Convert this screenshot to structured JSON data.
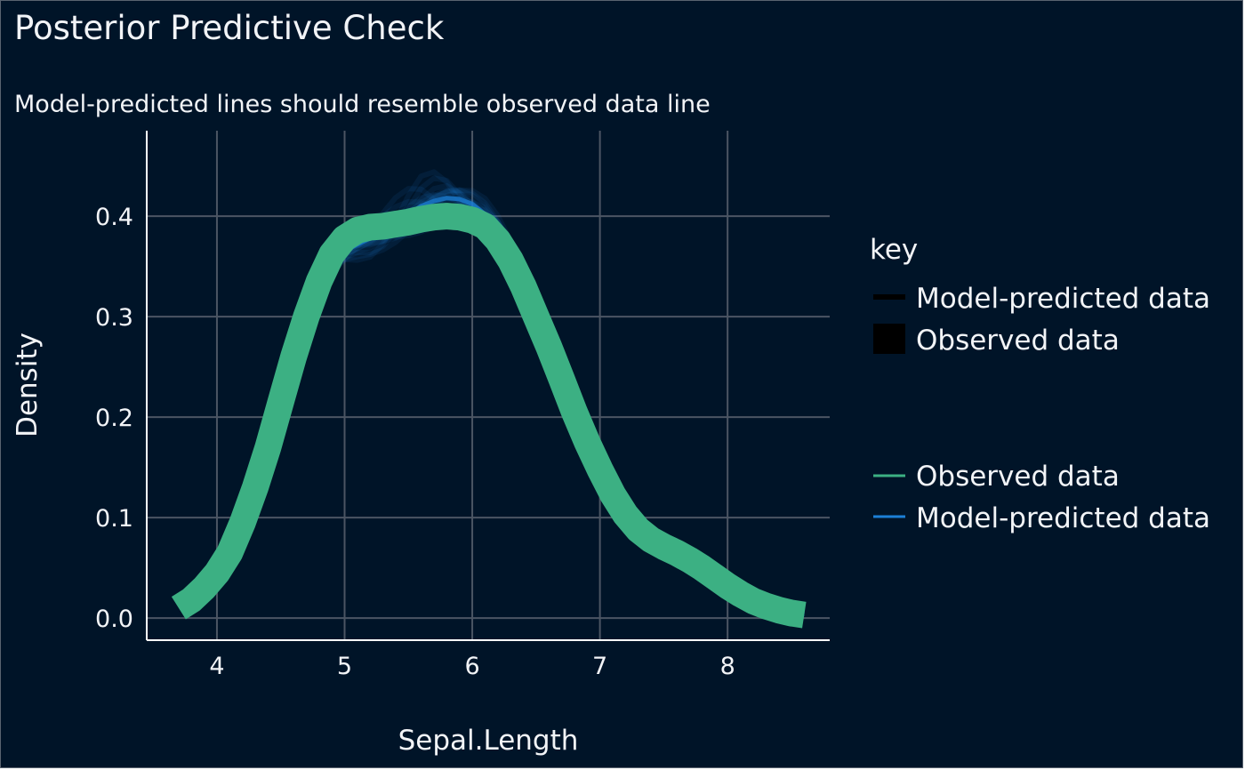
{
  "chart_data": {
    "type": "line",
    "title": "Posterior Predictive Check",
    "subtitle": "Model-predicted lines should resemble observed data line",
    "xlabel": "Sepal.Length",
    "ylabel": "Density",
    "xlim": [
      3.45,
      8.8
    ],
    "ylim": [
      -0.022,
      0.485
    ],
    "x_ticks": [
      "4",
      "5",
      "6",
      "7",
      "8"
    ],
    "y_ticks": [
      "0.0",
      "0.1",
      "0.2",
      "0.3",
      "0.4"
    ],
    "grid": true,
    "legend_position": "right",
    "legend": {
      "title": "key",
      "group1": [
        "Model-predicted data",
        "Observed data"
      ],
      "group2": [
        "Observed data",
        "Model-predicted data"
      ]
    },
    "colors": {
      "background": "#001428",
      "grid": "#4b5563",
      "axis": "#ffffff",
      "observed": "#3cb083",
      "predicted": "#1c7fd6"
    },
    "series": [
      {
        "name": "Observed data",
        "x": [
          3.7,
          3.8,
          3.9,
          4.0,
          4.1,
          4.2,
          4.3,
          4.4,
          4.5,
          4.6,
          4.7,
          4.8,
          4.9,
          5.0,
          5.1,
          5.2,
          5.3,
          5.4,
          5.5,
          5.6,
          5.7,
          5.8,
          5.9,
          6.0,
          6.1,
          6.2,
          6.3,
          6.4,
          6.5,
          6.6,
          6.7,
          6.8,
          6.9,
          7.0,
          7.1,
          7.2,
          7.3,
          7.4,
          7.5,
          7.6,
          7.7,
          7.8,
          7.9,
          8.0,
          8.1,
          8.2,
          8.3,
          8.4,
          8.5,
          8.6
        ],
        "y": [
          0.01,
          0.018,
          0.03,
          0.045,
          0.065,
          0.095,
          0.13,
          0.17,
          0.215,
          0.26,
          0.3,
          0.335,
          0.362,
          0.378,
          0.386,
          0.389,
          0.39,
          0.392,
          0.394,
          0.397,
          0.399,
          0.4,
          0.399,
          0.396,
          0.39,
          0.376,
          0.356,
          0.33,
          0.3,
          0.27,
          0.238,
          0.205,
          0.175,
          0.148,
          0.123,
          0.103,
          0.088,
          0.078,
          0.071,
          0.065,
          0.058,
          0.05,
          0.041,
          0.032,
          0.024,
          0.017,
          0.012,
          0.008,
          0.005,
          0.003
        ]
      },
      {
        "name": "Model-predicted data",
        "x": [
          3.7,
          3.8,
          3.9,
          4.0,
          4.1,
          4.2,
          4.3,
          4.4,
          4.5,
          4.6,
          4.7,
          4.8,
          4.9,
          5.0,
          5.1,
          5.2,
          5.3,
          5.4,
          5.5,
          5.6,
          5.7,
          5.8,
          5.9,
          6.0,
          6.1,
          6.2,
          6.3,
          6.4,
          6.5,
          6.6,
          6.7,
          6.8,
          6.9,
          7.0,
          7.1,
          7.2,
          7.3,
          7.4,
          7.5,
          7.6,
          7.7,
          7.8,
          7.9,
          8.0,
          8.1,
          8.2,
          8.3,
          8.4,
          8.5,
          8.6
        ],
        "y": [
          0.012,
          0.02,
          0.032,
          0.048,
          0.068,
          0.098,
          0.133,
          0.172,
          0.216,
          0.26,
          0.298,
          0.33,
          0.352,
          0.365,
          0.372,
          0.378,
          0.385,
          0.393,
          0.402,
          0.41,
          0.415,
          0.418,
          0.417,
          0.412,
          0.402,
          0.385,
          0.362,
          0.333,
          0.301,
          0.268,
          0.235,
          0.202,
          0.172,
          0.145,
          0.12,
          0.1,
          0.085,
          0.074,
          0.065,
          0.057,
          0.049,
          0.041,
          0.033,
          0.026,
          0.019,
          0.014,
          0.01,
          0.007,
          0.005,
          0.003
        ]
      }
    ]
  }
}
